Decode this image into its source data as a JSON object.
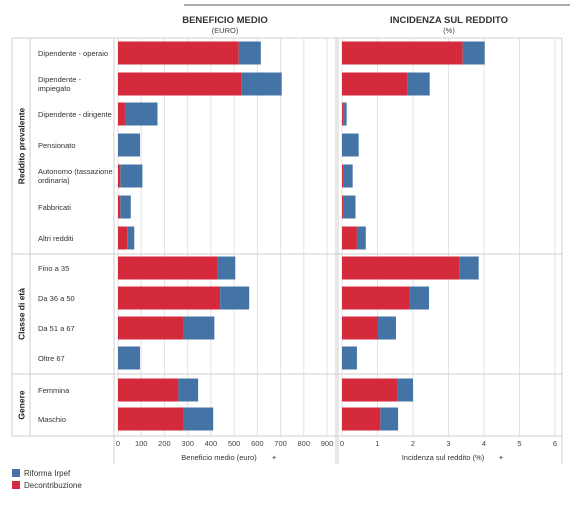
{
  "panels": {
    "left": {
      "title": "BENEFICIO MEDIO",
      "subtitle": "(EURO)",
      "axis_label": "Beneficio medio (euro)"
    },
    "right": {
      "title": "INCIDENZA SUL REDDITO",
      "subtitle": "(%)",
      "axis_label": "Incidenza sul reddito (%)"
    }
  },
  "groups": [
    {
      "label": "Reddito prevalente",
      "rows": [
        0,
        1,
        2,
        3,
        4,
        5,
        6
      ]
    },
    {
      "label": "Classe di età",
      "rows": [
        7,
        8,
        9,
        10
      ]
    },
    {
      "label": "Genere",
      "rows": [
        11,
        12
      ]
    }
  ],
  "legend": [
    {
      "label": "Riforma Irpef",
      "color": "#4474a6"
    },
    {
      "label": "Decontribuzione",
      "color": "#d42a3c"
    }
  ],
  "chart_data": [
    {
      "type": "bar",
      "stacked": true,
      "orientation": "horizontal",
      "title": "BENEFICIO MEDIO",
      "subtitle": "(EURO)",
      "xlabel": "Beneficio medio (euro)",
      "xlim": [
        0,
        900
      ],
      "xticks": [
        0,
        100,
        200,
        300,
        400,
        500,
        600,
        700,
        800,
        900
      ],
      "categories": [
        "Dipendente - operaio",
        "Dipendente - impiegato",
        "Dipendente - dirigente",
        "Pensionato",
        "Autonomo (tassazione ordinaria)",
        "Fabbricati",
        "Altri redditi",
        "Fino a 35",
        "Da 36 a 50",
        "Da 51 a 67",
        "Oltre 67",
        "Femmina",
        "Maschio"
      ],
      "series": [
        {
          "name": "Decontribuzione",
          "color": "#d42a3c",
          "values": [
            520,
            530,
            30,
            0,
            10,
            10,
            40,
            430,
            440,
            280,
            0,
            260,
            280
          ]
        },
        {
          "name": "Riforma Irpef",
          "color": "#4474a6",
          "values": [
            95,
            175,
            140,
            95,
            95,
            45,
            30,
            75,
            125,
            135,
            95,
            85,
            130
          ]
        }
      ]
    },
    {
      "type": "bar",
      "stacked": true,
      "orientation": "horizontal",
      "title": "INCIDENZA SUL REDDITO",
      "subtitle": "(%)",
      "xlabel": "Incidenza sul reddito (%)",
      "xlim": [
        0,
        6
      ],
      "xticks": [
        0,
        1,
        2,
        3,
        4,
        5,
        6
      ],
      "categories": [
        "Dipendente - operaio",
        "Dipendente - impiegato",
        "Dipendente - dirigente",
        "Pensionato",
        "Autonomo (tassazione ordinaria)",
        "Fabbricati",
        "Altri redditi",
        "Fino a 35",
        "Da 36 a 50",
        "Da 51 a 67",
        "Oltre 67",
        "Femmina",
        "Maschio"
      ],
      "series": [
        {
          "name": "Decontribuzione",
          "color": "#d42a3c",
          "values": [
            3.4,
            1.85,
            0.03,
            0.0,
            0.05,
            0.05,
            0.42,
            3.3,
            1.9,
            1.0,
            0.0,
            1.55,
            1.08
          ]
        },
        {
          "name": "Riforma Irpef",
          "color": "#4474a6",
          "values": [
            0.62,
            0.62,
            0.1,
            0.47,
            0.25,
            0.33,
            0.25,
            0.55,
            0.55,
            0.52,
            0.42,
            0.45,
            0.5
          ]
        }
      ]
    }
  ]
}
